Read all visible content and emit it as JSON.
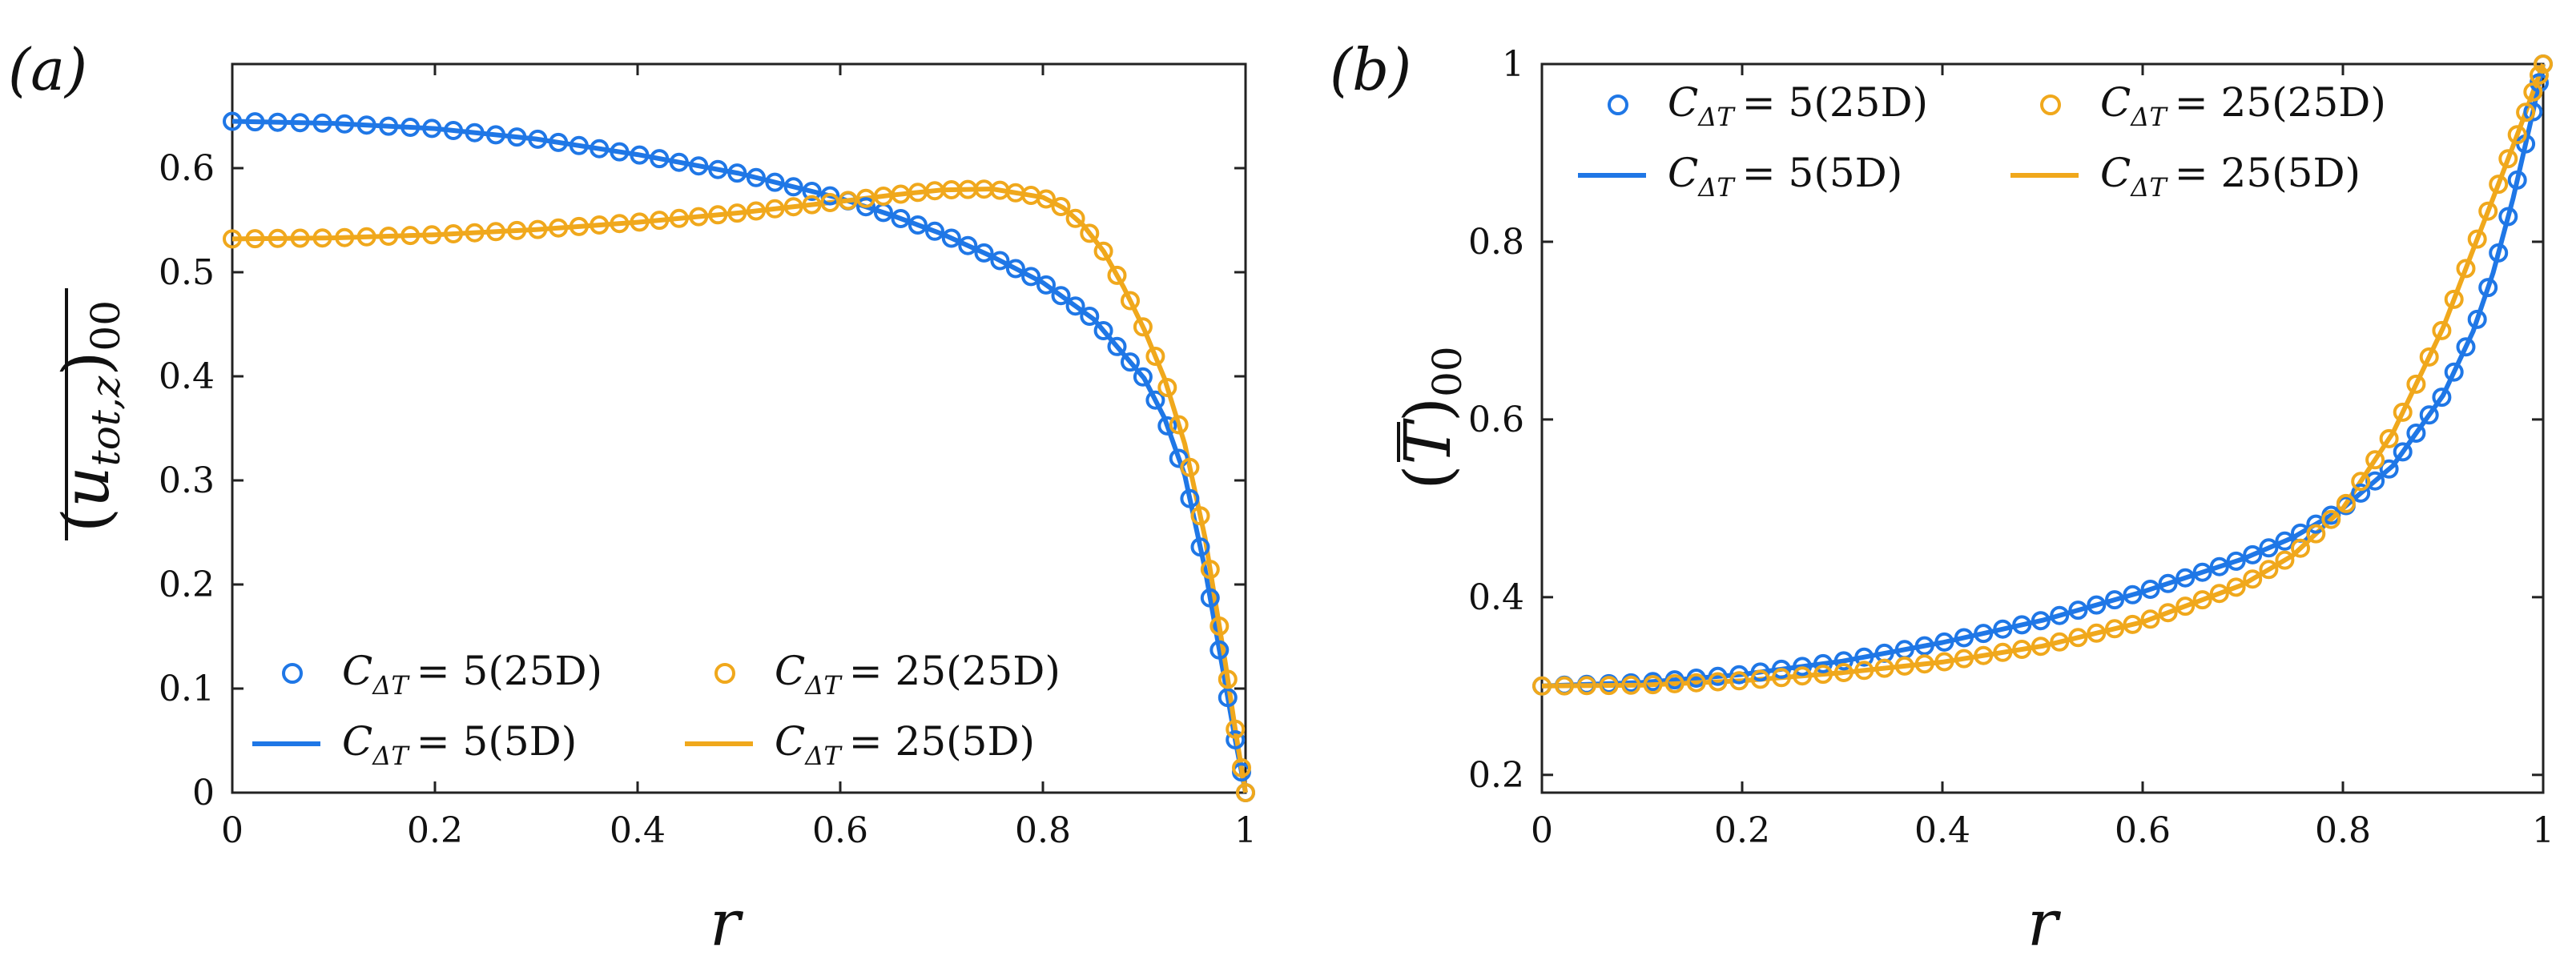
{
  "chart_data": [
    {
      "type": "line",
      "panel_label": "(a)",
      "xlabel": "r",
      "ylabel": "(u_tot,z)00",
      "ylabel_parts": {
        "open": "(",
        "base": "u",
        "sub": "tot,z",
        "close": ")",
        "outer_sub": "00"
      },
      "xlim": [
        0,
        1
      ],
      "ylim": [
        0,
        0.7
      ],
      "xticks": [
        "0",
        "0.2",
        "0.4",
        "0.6",
        "0.8",
        "1"
      ],
      "xtick_values": [
        0,
        0.2,
        0.4,
        0.6,
        0.8,
        1
      ],
      "yticks": [
        "0",
        "0.1",
        "0.2",
        "0.3",
        "0.4",
        "0.5",
        "0.6"
      ],
      "ytick_values": [
        0,
        0.1,
        0.2,
        0.3,
        0.4,
        0.5,
        0.6
      ],
      "legend_location": "bottom-left",
      "legend": [
        {
          "label": "C_ΔT = 5(25D)",
          "text": "= 5(25D)",
          "series": "C5_25D",
          "marker": "circle"
        },
        {
          "label": "C_ΔT = 25(25D)",
          "text": "= 25(25D)",
          "series": "C25_25D",
          "marker": "circle"
        },
        {
          "label": "C_ΔT = 5(5D)",
          "text": "= 5(5D)",
          "series": "C5_5D",
          "marker": "line"
        },
        {
          "label": "C_ΔT = 25(5D)",
          "text": "= 25(5D)",
          "series": "C25_5D",
          "marker": "line"
        }
      ],
      "series": [
        {
          "name": "C5_5D",
          "style": "line",
          "color": "#1f77e6",
          "x": [
            0,
            0.1,
            0.2,
            0.3,
            0.4,
            0.5,
            0.6,
            0.65,
            0.7,
            0.75,
            0.8,
            0.85,
            0.9,
            0.92,
            0.94,
            0.96,
            0.97,
            0.98,
            0.99,
            1.0
          ],
          "y": [
            0.645,
            0.643,
            0.638,
            0.628,
            0.613,
            0.595,
            0.571,
            0.555,
            0.537,
            0.515,
            0.49,
            0.455,
            0.398,
            0.36,
            0.305,
            0.215,
            0.16,
            0.105,
            0.05,
            0.0
          ]
        },
        {
          "name": "C25_5D",
          "style": "line",
          "color": "#f0a81c",
          "x": [
            0,
            0.1,
            0.2,
            0.3,
            0.4,
            0.5,
            0.6,
            0.65,
            0.7,
            0.75,
            0.8,
            0.82,
            0.84,
            0.86,
            0.88,
            0.9,
            0.92,
            0.94,
            0.96,
            0.97,
            0.98,
            0.99,
            1.0
          ],
          "y": [
            0.532,
            0.533,
            0.536,
            0.541,
            0.548,
            0.557,
            0.568,
            0.574,
            0.579,
            0.58,
            0.572,
            0.562,
            0.545,
            0.52,
            0.485,
            0.445,
            0.398,
            0.335,
            0.245,
            0.185,
            0.125,
            0.06,
            0.0
          ]
        },
        {
          "name": "C5_25D",
          "style": "markers",
          "color": "#1f77e6",
          "x": [
            0,
            0.1,
            0.2,
            0.3,
            0.4,
            0.5,
            0.6,
            0.65,
            0.7,
            0.75,
            0.8,
            0.85,
            0.9,
            0.92,
            0.94,
            0.96,
            0.97,
            0.98,
            0.99,
            1.0
          ],
          "y": [
            0.645,
            0.643,
            0.638,
            0.628,
            0.613,
            0.595,
            0.571,
            0.555,
            0.537,
            0.515,
            0.49,
            0.455,
            0.398,
            0.36,
            0.305,
            0.215,
            0.16,
            0.105,
            0.05,
            0.0
          ]
        },
        {
          "name": "C25_25D",
          "style": "markers",
          "color": "#f0a81c",
          "x": [
            0,
            0.1,
            0.2,
            0.3,
            0.4,
            0.5,
            0.6,
            0.65,
            0.7,
            0.75,
            0.8,
            0.82,
            0.84,
            0.86,
            0.88,
            0.9,
            0.92,
            0.94,
            0.96,
            0.97,
            0.98,
            0.99,
            1.0
          ],
          "y": [
            0.532,
            0.533,
            0.536,
            0.541,
            0.548,
            0.557,
            0.568,
            0.574,
            0.579,
            0.58,
            0.572,
            0.562,
            0.545,
            0.52,
            0.485,
            0.445,
            0.398,
            0.335,
            0.245,
            0.185,
            0.125,
            0.06,
            0.0
          ]
        }
      ]
    },
    {
      "type": "line",
      "panel_label": "(b)",
      "xlabel": "r",
      "ylabel": "(T)00",
      "ylabel_parts": {
        "open": "(",
        "base": "T",
        "sub": "",
        "close": ")",
        "outer_sub": "00"
      },
      "xlim": [
        0,
        1
      ],
      "ylim": [
        0.18,
        1.0
      ],
      "xticks": [
        "0",
        "0.2",
        "0.4",
        "0.6",
        "0.8",
        "1"
      ],
      "xtick_values": [
        0,
        0.2,
        0.4,
        0.6,
        0.8,
        1
      ],
      "yticks": [
        "0.2",
        "0.4",
        "0.6",
        "0.8",
        "1"
      ],
      "ytick_values": [
        0.2,
        0.4,
        0.6,
        0.8,
        1.0
      ],
      "legend_location": "top-left",
      "legend": [
        {
          "label": "C_ΔT = 5(25D)",
          "text": "= 5(25D)",
          "series": "C5_25D",
          "marker": "circle"
        },
        {
          "label": "C_ΔT = 25(25D)",
          "text": "= 25(25D)",
          "series": "C25_25D",
          "marker": "circle"
        },
        {
          "label": "C_ΔT = 5(5D)",
          "text": "= 5(5D)",
          "series": "C5_5D",
          "marker": "line"
        },
        {
          "label": "C_ΔT = 25(5D)",
          "text": "= 25(5D)",
          "series": "C25_5D",
          "marker": "line"
        }
      ],
      "series": [
        {
          "name": "C5_5D",
          "style": "line",
          "color": "#1f77e6",
          "x": [
            0,
            0.1,
            0.2,
            0.3,
            0.4,
            0.5,
            0.6,
            0.7,
            0.75,
            0.8,
            0.85,
            0.9,
            0.93,
            0.95,
            0.97,
            0.98,
            0.99,
            1.0
          ],
          "y": [
            0.3,
            0.304,
            0.313,
            0.328,
            0.349,
            0.374,
            0.406,
            0.443,
            0.467,
            0.5,
            0.548,
            0.627,
            0.699,
            0.765,
            0.849,
            0.898,
            0.947,
            1.0
          ]
        },
        {
          "name": "C25_5D",
          "style": "line",
          "color": "#f0a81c",
          "x": [
            0,
            0.1,
            0.2,
            0.3,
            0.4,
            0.5,
            0.6,
            0.7,
            0.75,
            0.8,
            0.85,
            0.9,
            0.93,
            0.95,
            0.97,
            0.98,
            0.99,
            1.0
          ],
          "y": [
            0.3,
            0.301,
            0.306,
            0.315,
            0.327,
            0.345,
            0.372,
            0.414,
            0.447,
            0.5,
            0.585,
            0.703,
            0.791,
            0.849,
            0.908,
            0.938,
            0.969,
            1.0
          ]
        },
        {
          "name": "C5_25D",
          "style": "markers",
          "color": "#1f77e6",
          "x": [
            0,
            0.1,
            0.2,
            0.3,
            0.4,
            0.5,
            0.6,
            0.7,
            0.75,
            0.8,
            0.85,
            0.9,
            0.93,
            0.95,
            0.97,
            0.98,
            0.99,
            1.0
          ],
          "y": [
            0.3,
            0.304,
            0.313,
            0.328,
            0.349,
            0.374,
            0.406,
            0.443,
            0.467,
            0.5,
            0.548,
            0.627,
            0.699,
            0.765,
            0.849,
            0.898,
            0.947,
            1.0
          ]
        },
        {
          "name": "C25_25D",
          "style": "markers",
          "color": "#f0a81c",
          "x": [
            0,
            0.1,
            0.2,
            0.3,
            0.4,
            0.5,
            0.6,
            0.7,
            0.75,
            0.8,
            0.85,
            0.9,
            0.93,
            0.95,
            0.97,
            0.98,
            0.99,
            1.0
          ],
          "y": [
            0.3,
            0.301,
            0.306,
            0.315,
            0.327,
            0.345,
            0.372,
            0.414,
            0.447,
            0.5,
            0.585,
            0.703,
            0.791,
            0.849,
            0.908,
            0.938,
            0.969,
            1.0
          ]
        }
      ]
    }
  ]
}
